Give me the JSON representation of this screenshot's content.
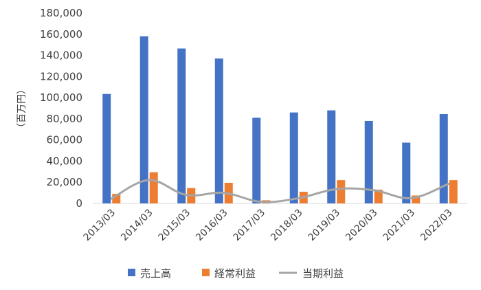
{
  "chart_data": {
    "type": "bar",
    "title": "",
    "xlabel": "",
    "ylabel": "（百万円）",
    "ylim": [
      0,
      180000
    ],
    "yticks": [
      "0",
      "20,000",
      "40,000",
      "60,000",
      "80,000",
      "100,000",
      "120,000",
      "140,000",
      "160,000",
      "180,000"
    ],
    "categories": [
      "2013/03",
      "2014/03",
      "2015/03",
      "2016/03",
      "2017/03",
      "2018/03",
      "2019/03",
      "2020/03",
      "2021/03",
      "2022/03"
    ],
    "series": [
      {
        "name": "売上高",
        "type": "bar",
        "color": "#4472C4",
        "values": [
          103500,
          158000,
          146500,
          137000,
          81000,
          86000,
          88000,
          78000,
          57500,
          84500
        ]
      },
      {
        "name": "経常利益",
        "type": "bar",
        "color": "#ED7D31",
        "values": [
          9000,
          29500,
          14500,
          19500,
          3000,
          11000,
          22000,
          13000,
          7500,
          22000
        ]
      },
      {
        "name": "当期利益",
        "type": "line",
        "color": "#A5A5A5",
        "values": [
          4500,
          22000,
          8000,
          10000,
          1500,
          5000,
          13500,
          12500,
          5000,
          18500
        ]
      }
    ],
    "grid": false,
    "legend_position": "bottom"
  }
}
